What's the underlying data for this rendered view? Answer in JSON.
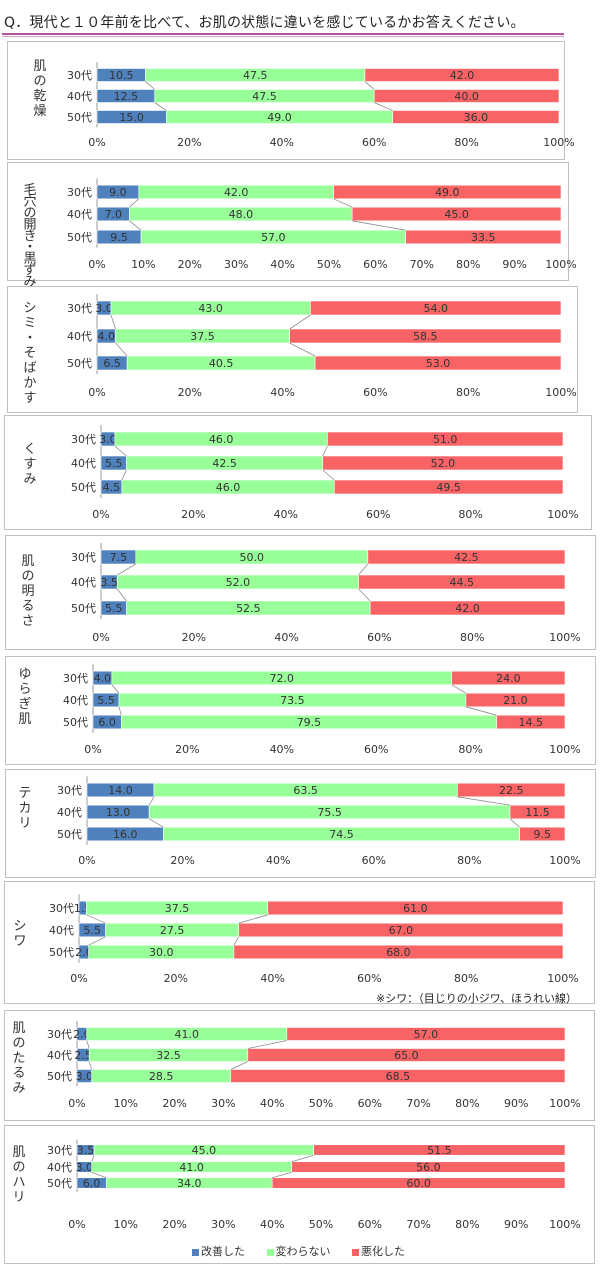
{
  "title": "Q．現代と１０年前を比べて、お肌の状態に違いを感じているかお答えください。",
  "legend": [
    {
      "label": "改善した",
      "color": "#4f81bd"
    },
    {
      "label": "変わらない",
      "color": "#99ff99"
    },
    {
      "label": "悪化した",
      "color": "#f86466"
    }
  ],
  "note": "※シワ：（目じりの小ジワ、ほうれい線）",
  "chart_data": [
    {
      "type": "bar",
      "stacked": true,
      "orientation": "horizontal",
      "title": "肌の乾燥",
      "categories": [
        "30代",
        "40代",
        "50代"
      ],
      "series": [
        {
          "name": "改善した",
          "values": [
            10.5,
            12.5,
            15.0
          ]
        },
        {
          "name": "変わらない",
          "values": [
            47.5,
            47.5,
            49.0
          ]
        },
        {
          "name": "悪化した",
          "values": [
            42.0,
            40.0,
            36.0
          ]
        }
      ],
      "ticks": [
        "0%",
        "20%",
        "40%",
        "60%",
        "80%",
        "100%"
      ],
      "xlim": [
        0,
        100
      ]
    },
    {
      "type": "bar",
      "stacked": true,
      "orientation": "horizontal",
      "title": "毛穴の開き・黒ずみ",
      "categories": [
        "30代",
        "40代",
        "50代"
      ],
      "series": [
        {
          "name": "改善した",
          "values": [
            9.0,
            7.0,
            9.5
          ]
        },
        {
          "name": "変わらない",
          "values": [
            42.0,
            48.0,
            57.0
          ]
        },
        {
          "name": "悪化した",
          "values": [
            49.0,
            45.0,
            33.5
          ]
        }
      ],
      "ticks": [
        "0%",
        "10%",
        "20%",
        "30%",
        "40%",
        "50%",
        "60%",
        "70%",
        "80%",
        "90%",
        "100%"
      ],
      "xlim": [
        0,
        100
      ]
    },
    {
      "type": "bar",
      "stacked": true,
      "orientation": "horizontal",
      "title": "シミ・そばかす",
      "categories": [
        "30代",
        "40代",
        "50代"
      ],
      "series": [
        {
          "name": "改善した",
          "values": [
            3.0,
            4.0,
            6.5
          ]
        },
        {
          "name": "変わらない",
          "values": [
            43.0,
            37.5,
            40.5
          ]
        },
        {
          "name": "悪化した",
          "values": [
            54.0,
            58.5,
            53.0
          ]
        }
      ],
      "ticks": [
        "0%",
        "20%",
        "40%",
        "60%",
        "80%",
        "100%"
      ],
      "xlim": [
        0,
        100
      ]
    },
    {
      "type": "bar",
      "stacked": true,
      "orientation": "horizontal",
      "title": "くすみ",
      "categories": [
        "30代",
        "40代",
        "50代"
      ],
      "series": [
        {
          "name": "改善した",
          "values": [
            3.0,
            5.5,
            4.5
          ]
        },
        {
          "name": "変わらない",
          "values": [
            46.0,
            42.5,
            46.0
          ]
        },
        {
          "name": "悪化した",
          "values": [
            51.0,
            52.0,
            49.5
          ]
        }
      ],
      "ticks": [
        "0%",
        "20%",
        "40%",
        "60%",
        "80%",
        "100%"
      ],
      "xlim": [
        0,
        100
      ]
    },
    {
      "type": "bar",
      "stacked": true,
      "orientation": "horizontal",
      "title": "肌の明るさ",
      "categories": [
        "30代",
        "40代",
        "50代"
      ],
      "series": [
        {
          "name": "改善した",
          "values": [
            7.5,
            3.5,
            5.5
          ]
        },
        {
          "name": "変わらない",
          "values": [
            50.0,
            52.0,
            52.5
          ]
        },
        {
          "name": "悪化した",
          "values": [
            42.5,
            44.5,
            42.0
          ]
        }
      ],
      "ticks": [
        "0%",
        "20%",
        "40%",
        "60%",
        "80%",
        "100%"
      ],
      "xlim": [
        0,
        100
      ]
    },
    {
      "type": "bar",
      "stacked": true,
      "orientation": "horizontal",
      "title": "ゆらぎ肌",
      "categories": [
        "30代",
        "40代",
        "50代"
      ],
      "series": [
        {
          "name": "改善した",
          "values": [
            4.0,
            5.5,
            6.0
          ]
        },
        {
          "name": "変わらない",
          "values": [
            72.0,
            73.5,
            79.5
          ]
        },
        {
          "name": "悪化した",
          "values": [
            24.0,
            21.0,
            14.5
          ]
        }
      ],
      "ticks": [
        "0%",
        "20%",
        "40%",
        "60%",
        "80%",
        "100%"
      ],
      "xlim": [
        0,
        100
      ]
    },
    {
      "type": "bar",
      "stacked": true,
      "orientation": "horizontal",
      "title": "テカリ",
      "categories": [
        "30代",
        "40代",
        "50代"
      ],
      "series": [
        {
          "name": "改善した",
          "values": [
            14.0,
            13.0,
            16.0
          ]
        },
        {
          "name": "変わらない",
          "values": [
            63.5,
            75.5,
            74.5
          ]
        },
        {
          "name": "悪化した",
          "values": [
            22.5,
            11.5,
            9.5
          ]
        }
      ],
      "ticks": [
        "0%",
        "20%",
        "40%",
        "60%",
        "80%",
        "100%"
      ],
      "xlim": [
        0,
        100
      ]
    },
    {
      "type": "bar",
      "stacked": true,
      "orientation": "horizontal",
      "title": "シワ",
      "categories": [
        "30代",
        "40代",
        "50代"
      ],
      "series": [
        {
          "name": "改善した",
          "values": [
            1.5,
            5.5,
            2.0
          ]
        },
        {
          "name": "変わらない",
          "values": [
            37.5,
            27.5,
            30.0
          ]
        },
        {
          "name": "悪化した",
          "values": [
            61.0,
            67.0,
            68.0
          ]
        }
      ],
      "ticks": [
        "0%",
        "20%",
        "40%",
        "60%",
        "80%",
        "100%"
      ],
      "xlim": [
        0,
        100
      ]
    },
    {
      "type": "bar",
      "stacked": true,
      "orientation": "horizontal",
      "title": "肌のたるみ",
      "categories": [
        "30代",
        "40代",
        "50代"
      ],
      "series": [
        {
          "name": "改善した",
          "values": [
            2.0,
            2.5,
            3.0
          ]
        },
        {
          "name": "変わらない",
          "values": [
            41.0,
            32.5,
            28.5
          ]
        },
        {
          "name": "悪化した",
          "values": [
            57.0,
            65.0,
            68.5
          ]
        }
      ],
      "ticks": [
        "0%",
        "10%",
        "20%",
        "30%",
        "40%",
        "50%",
        "60%",
        "70%",
        "80%",
        "90%",
        "100%"
      ],
      "xlim": [
        0,
        100
      ]
    },
    {
      "type": "bar",
      "stacked": true,
      "orientation": "horizontal",
      "title": "肌のハリ",
      "categories": [
        "30代",
        "40代",
        "50代"
      ],
      "series": [
        {
          "name": "改善した",
          "values": [
            3.5,
            3.0,
            6.0
          ]
        },
        {
          "name": "変わらない",
          "values": [
            45.0,
            41.0,
            34.0
          ]
        },
        {
          "name": "悪化した",
          "values": [
            51.5,
            56.0,
            60.0
          ]
        }
      ],
      "ticks": [
        "0%",
        "10%",
        "20%",
        "30%",
        "40%",
        "50%",
        "60%",
        "70%",
        "80%",
        "90%",
        "100%"
      ],
      "xlim": [
        0,
        100
      ]
    }
  ]
}
